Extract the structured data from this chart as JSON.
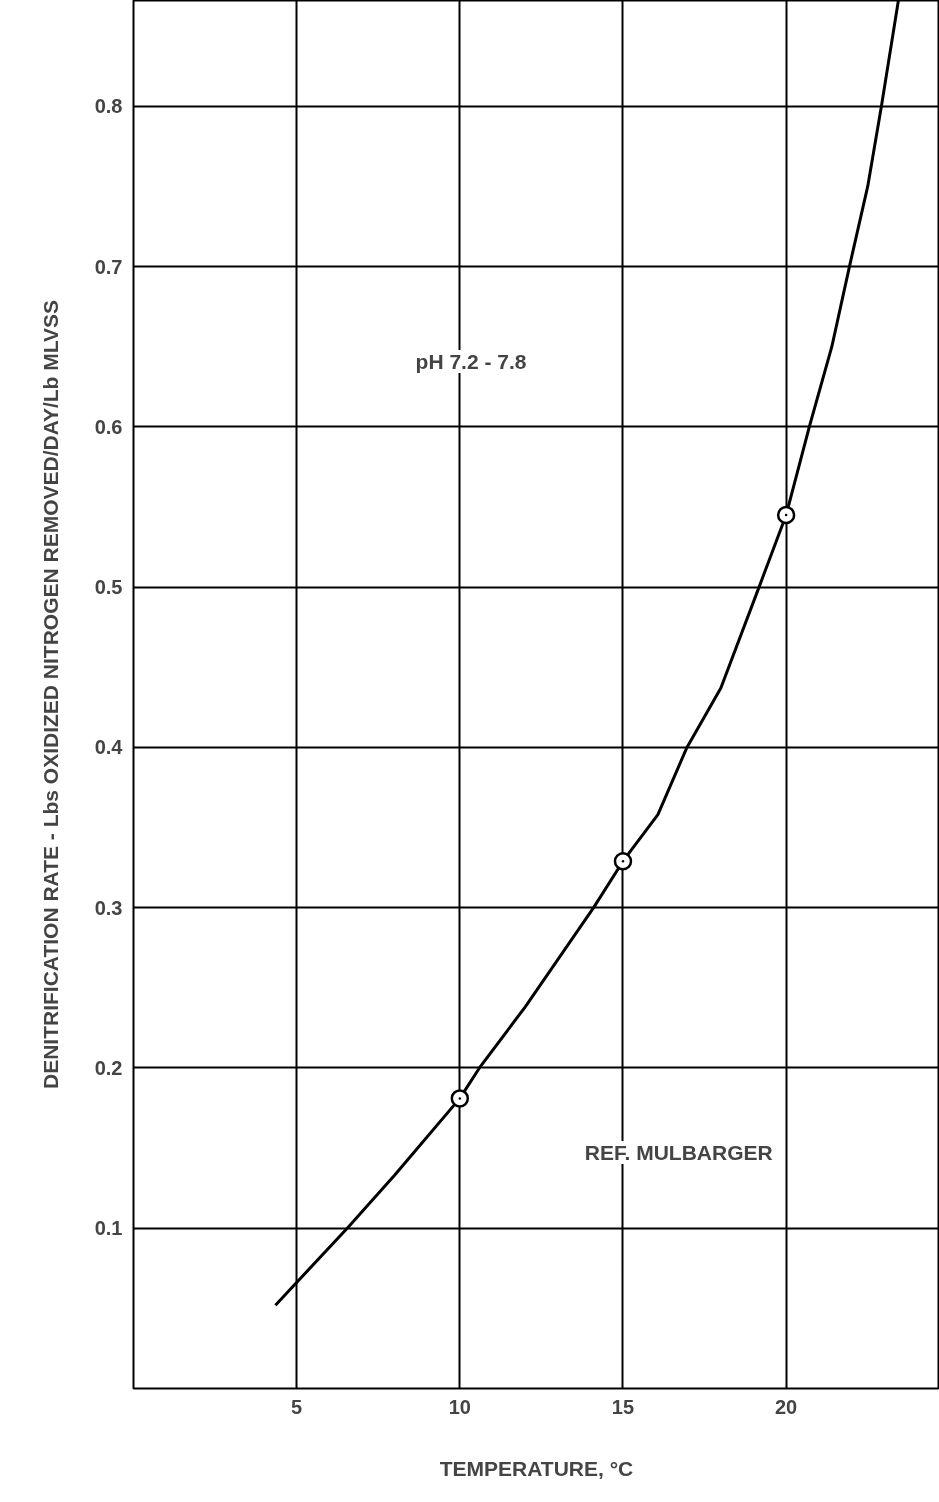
{
  "chart_data": {
    "type": "line",
    "xlabel": "TEMPERATURE, °C",
    "ylabel": "DENITRIFICATION RATE - Lbs OXIDIZED NITROGEN REMOVED/DAY/Lb MLVSS",
    "xlim": [
      0,
      24.7
    ],
    "ylim": [
      0,
      0.866
    ],
    "xticks": [
      5,
      10,
      15,
      20
    ],
    "yticks": [
      0.1,
      0.2,
      0.3,
      0.4,
      0.5,
      0.6,
      0.7,
      0.8
    ],
    "grid": true,
    "annotations": [
      "pH 7.2 - 7.8",
      "REF. MULBARGER"
    ],
    "series": [
      {
        "color": "#000000",
        "line_style": "solid",
        "x": [
          4.35,
          6.55,
          8,
          10,
          10.6,
          12,
          14.1,
          15,
          16.07,
          16.96,
          18,
          19.17,
          20,
          20.71,
          21.4,
          21.94,
          22.5,
          22.92,
          23.44
        ],
        "values": [
          0.052,
          0.1,
          0.133,
          0.181,
          0.2,
          0.238,
          0.3,
          0.329,
          0.358,
          0.4,
          0.437,
          0.5,
          0.545,
          0.6,
          0.65,
          0.7,
          0.75,
          0.8,
          0.866
        ]
      },
      {
        "type": "scatter",
        "color": "#000000",
        "marker": "circle",
        "x": [
          10,
          15,
          20
        ],
        "values": [
          0.181,
          0.329,
          0.545
        ]
      }
    ]
  }
}
